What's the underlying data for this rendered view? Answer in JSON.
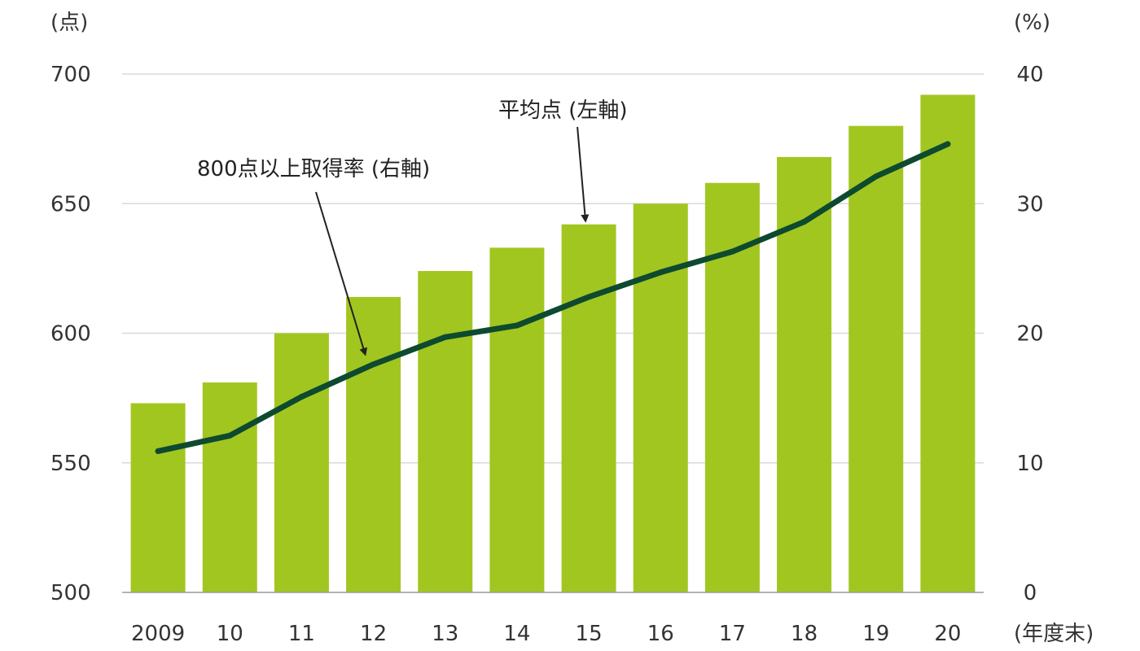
{
  "chart_data": {
    "type": "bar",
    "categories": [
      "2009",
      "10",
      "11",
      "12",
      "13",
      "14",
      "15",
      "16",
      "17",
      "18",
      "19",
      "20"
    ],
    "x_unit": "(年度末)",
    "left_axis": {
      "unit": "(点)",
      "ylim": [
        500,
        700
      ],
      "ticks": [
        500,
        550,
        600,
        650,
        700
      ]
    },
    "right_axis": {
      "unit": "(%)",
      "ylim": [
        0,
        40
      ],
      "ticks": [
        0,
        10,
        20,
        30,
        40
      ]
    },
    "grid": true,
    "series": [
      {
        "name": "平均点 (左軸)",
        "type": "bar",
        "axis": "left",
        "color": "#a2c620",
        "values": [
          573,
          581,
          600,
          614,
          624,
          633,
          642,
          650,
          658,
          668,
          680,
          692
        ]
      },
      {
        "name": "800点以上取得率 (右軸)",
        "type": "line",
        "axis": "right",
        "color": "#0d4a2f",
        "values": [
          10.9,
          12.1,
          15.1,
          17.6,
          19.7,
          20.6,
          22.8,
          24.7,
          26.3,
          28.6,
          32.1,
          34.6
        ]
      }
    ],
    "annotations": [
      {
        "text": "平均点 (左軸)",
        "target_series": 0,
        "target_index": 6
      },
      {
        "text": "800点以上取得率 (右軸)",
        "target_series": 1,
        "target_index": 3
      }
    ]
  }
}
